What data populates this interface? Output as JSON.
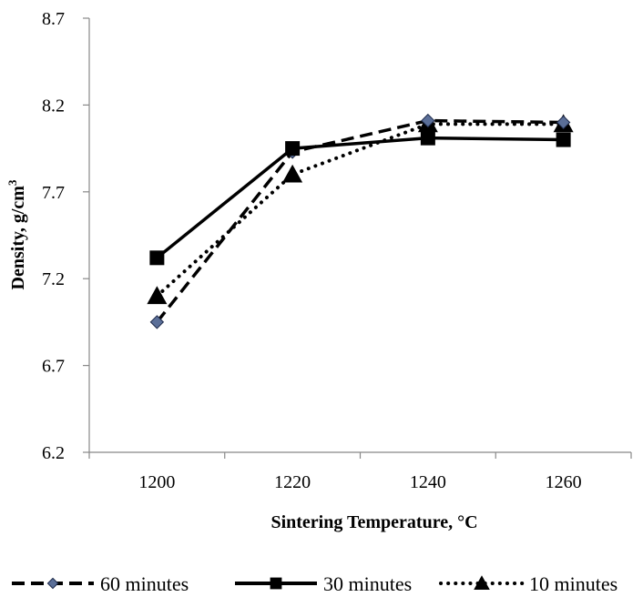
{
  "chart_data": {
    "type": "line",
    "title": "",
    "xlabel": "Sintering Temperature,  °C",
    "ylabel": "Density, g/cm",
    "ylabel_superscript": "3",
    "categories": [
      "1200",
      "1220",
      "1240",
      "1260"
    ],
    "yticks": [
      "6.2",
      "6.7",
      "7.2",
      "7.7",
      "8.2",
      "8.7"
    ],
    "ylim": [
      6.2,
      8.7
    ],
    "grid": false,
    "legend_position": "bottom",
    "series": [
      {
        "name": "60 minutes",
        "values": [
          6.95,
          7.93,
          8.11,
          8.1
        ],
        "line_style": "dashed",
        "marker": "diamond",
        "color": "#000000"
      },
      {
        "name": "30 minutes",
        "values": [
          7.32,
          7.95,
          8.01,
          8.0
        ],
        "line_style": "solid",
        "marker": "square",
        "color": "#000000"
      },
      {
        "name": "10 minutes",
        "values": [
          7.1,
          7.8,
          8.09,
          8.09
        ],
        "line_style": "dotted",
        "marker": "triangle",
        "color": "#000000"
      }
    ]
  }
}
